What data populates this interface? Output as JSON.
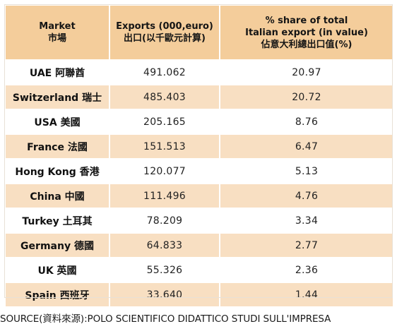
{
  "header": {
    "market_en": "Market",
    "market_zh": "市場",
    "exports_en": "Exports (000,euro)",
    "exports_zh": "出口(以千歐元計算)",
    "share_en_1": "% share of total",
    "share_en_2": "Italian export (in value)",
    "share_zh": "佔意大利總出口值(%)"
  },
  "rows": [
    {
      "market": "UAE 阿聯酋",
      "exports": "491.062",
      "share": "20.97"
    },
    {
      "market": "Switzerland 瑞士",
      "exports": "485.403",
      "share": "20.72"
    },
    {
      "market": "USA 美國",
      "exports": "205.165",
      "share": "8.76"
    },
    {
      "market": "France 法國",
      "exports": "151.513",
      "share": "6.47"
    },
    {
      "market": "Hong Kong 香港",
      "exports": "120.077",
      "share": "5.13"
    },
    {
      "market": "China 中國",
      "exports": "111.496",
      "share": "4.76"
    },
    {
      "market": "Turkey 土耳其",
      "exports": "78.209",
      "share": "3.34"
    },
    {
      "market": "Germany 德國",
      "exports": "64.833",
      "share": "2.77"
    },
    {
      "market": "UK 英國",
      "exports": "55.326",
      "share": "2.36"
    },
    {
      "market": "Spain 西班牙",
      "exports": "33.640",
      "share": "1.44"
    }
  ],
  "source": "SOURCE(資料來源):POLO SCIENTIFICO DIDATTICO STUDI SULL'IMPRESA",
  "colors": {
    "header_bg": "#f4cd9b",
    "even_row_bg": "#f8dfc2",
    "odd_row_bg": "#ffffff"
  }
}
